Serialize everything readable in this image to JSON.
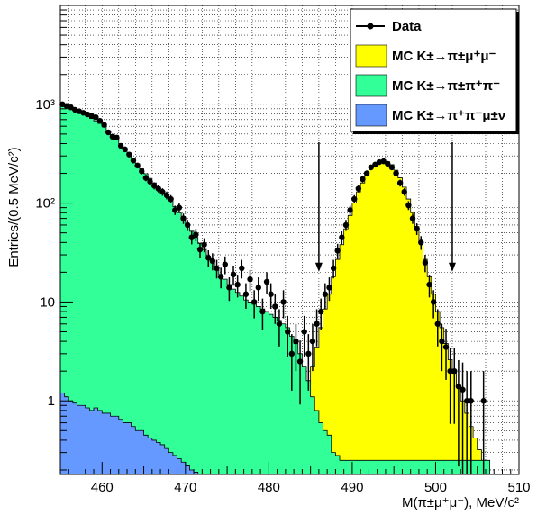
{
  "chart_data": {
    "type": "histogram",
    "title": "",
    "xlabel": "M(π±μ⁺μ⁻), MeV/c²",
    "ylabel": "Entries/(0.5 MeV/c²)",
    "xlim": [
      455,
      510
    ],
    "ylim": [
      0.18,
      10000
    ],
    "yscale": "log",
    "grid": true,
    "legend_position": "top-right",
    "x_ticks": [
      460,
      470,
      480,
      490,
      500,
      510
    ],
    "x_tick_labels": [
      "460",
      "470",
      "480",
      "490",
      "500",
      "510"
    ],
    "y_ticks": [
      1,
      10,
      100,
      1000
    ],
    "y_tick_labels": [
      "1",
      "10",
      "10²",
      "10³"
    ],
    "bin_width": 0.5,
    "series": [
      {
        "name": "Data",
        "kind": "points",
        "color": "#000000",
        "points": [
          [
            455.25,
            1000
          ],
          [
            455.75,
            960
          ],
          [
            456.25,
            930
          ],
          [
            456.75,
            880
          ],
          [
            457.25,
            850
          ],
          [
            457.75,
            820
          ],
          [
            458.25,
            790
          ],
          [
            458.75,
            760
          ],
          [
            459.25,
            740
          ],
          [
            459.75,
            680
          ],
          [
            460.25,
            620
          ],
          [
            460.75,
            520
          ],
          [
            461.25,
            470
          ],
          [
            461.75,
            460
          ],
          [
            462.25,
            380
          ],
          [
            462.75,
            350
          ],
          [
            463.25,
            310
          ],
          [
            463.75,
            270
          ],
          [
            464.25,
            240
          ],
          [
            464.75,
            210
          ],
          [
            465.25,
            180
          ],
          [
            465.75,
            165
          ],
          [
            466.25,
            150
          ],
          [
            466.75,
            140
          ],
          [
            467.25,
            130
          ],
          [
            467.75,
            120
          ],
          [
            468.25,
            110
          ],
          [
            468.75,
            85
          ],
          [
            469.25,
            90
          ],
          [
            469.75,
            70
          ],
          [
            470.25,
            60
          ],
          [
            470.75,
            45
          ],
          [
            471.25,
            48
          ],
          [
            471.75,
            34
          ],
          [
            472.25,
            38
          ],
          [
            472.75,
            28
          ],
          [
            473.25,
            26
          ],
          [
            473.75,
            22
          ],
          [
            474.25,
            18
          ],
          [
            474.75,
            24
          ],
          [
            475.25,
            14
          ],
          [
            475.75,
            19
          ],
          [
            476.25,
            15
          ],
          [
            476.75,
            22
          ],
          [
            477.25,
            12
          ],
          [
            477.75,
            17
          ],
          [
            478.25,
            10
          ],
          [
            478.75,
            14
          ],
          [
            479.25,
            8
          ],
          [
            479.75,
            16
          ],
          [
            480.25,
            12
          ],
          [
            480.75,
            9
          ],
          [
            481.25,
            6
          ],
          [
            481.75,
            10
          ],
          [
            482.25,
            5
          ],
          [
            482.75,
            3
          ],
          [
            483.25,
            4
          ],
          [
            483.75,
            2.5
          ],
          [
            484.25,
            5
          ],
          [
            484.75,
            3
          ],
          [
            485.25,
            4
          ],
          [
            485.75,
            6
          ],
          [
            486.25,
            8
          ],
          [
            486.75,
            12
          ],
          [
            487.25,
            14
          ],
          [
            487.75,
            22
          ],
          [
            488.25,
            33
          ],
          [
            488.75,
            45
          ],
          [
            489.25,
            60
          ],
          [
            489.75,
            85
          ],
          [
            490.25,
            110
          ],
          [
            490.75,
            140
          ],
          [
            491.25,
            175
          ],
          [
            491.75,
            200
          ],
          [
            492.25,
            230
          ],
          [
            492.75,
            245
          ],
          [
            493.25,
            260
          ],
          [
            493.75,
            265
          ],
          [
            494.25,
            250
          ],
          [
            494.75,
            230
          ],
          [
            495.25,
            200
          ],
          [
            495.75,
            160
          ],
          [
            496.25,
            130
          ],
          [
            496.75,
            95
          ],
          [
            497.25,
            70
          ],
          [
            497.75,
            55
          ],
          [
            498.25,
            40
          ],
          [
            498.75,
            25
          ],
          [
            499.25,
            15
          ],
          [
            499.75,
            10
          ],
          [
            500.25,
            6
          ],
          [
            500.75,
            4
          ],
          [
            501.25,
            3.5
          ],
          [
            501.75,
            2
          ],
          [
            502.25,
            2
          ],
          [
            502.75,
            1.4
          ],
          [
            503.25,
            1.3
          ],
          [
            503.75,
            1
          ],
          [
            504.25,
            1
          ],
          [
            505.75,
            1
          ]
        ]
      },
      {
        "name": "MC K±→π±μ⁺μ⁻",
        "kind": "histogram",
        "color": "#ffff00",
        "edges": [
          [
            484.0,
            1
          ],
          [
            484.5,
            1.5
          ],
          [
            485.0,
            2.2
          ],
          [
            485.5,
            3.5
          ],
          [
            486.0,
            5.5
          ],
          [
            486.5,
            8.5
          ],
          [
            487.0,
            12
          ],
          [
            487.5,
            18
          ],
          [
            488.0,
            27
          ],
          [
            488.5,
            38
          ],
          [
            489.0,
            55
          ],
          [
            489.5,
            75
          ],
          [
            490.0,
            100
          ],
          [
            490.5,
            130
          ],
          [
            491.0,
            160
          ],
          [
            491.5,
            195
          ],
          [
            492.0,
            225
          ],
          [
            492.5,
            250
          ],
          [
            493.0,
            265
          ],
          [
            493.5,
            270
          ],
          [
            494.0,
            262
          ],
          [
            494.5,
            245
          ],
          [
            495.0,
            215
          ],
          [
            495.5,
            180
          ],
          [
            496.0,
            145
          ],
          [
            496.5,
            110
          ],
          [
            497.0,
            80
          ],
          [
            497.5,
            58
          ],
          [
            498.0,
            40
          ],
          [
            498.5,
            27
          ],
          [
            499.0,
            18
          ],
          [
            499.5,
            12
          ],
          [
            500.0,
            8
          ],
          [
            500.5,
            5.5
          ],
          [
            501.0,
            3.8
          ],
          [
            501.5,
            2.6
          ],
          [
            502.0,
            1.9
          ],
          [
            502.5,
            1.4
          ],
          [
            503.0,
            1.0
          ],
          [
            503.5,
            0.75
          ],
          [
            504.0,
            0.55
          ],
          [
            504.5,
            0.42
          ],
          [
            505.0,
            0.32
          ],
          [
            505.5,
            0.25
          ],
          [
            506.0,
            0.2
          ]
        ]
      },
      {
        "name": "MC K±→π±π⁺π⁻",
        "kind": "histogram",
        "color": "#33ff99",
        "edges": [
          [
            455.0,
            1000
          ],
          [
            455.5,
            960
          ],
          [
            456.0,
            920
          ],
          [
            456.5,
            880
          ],
          [
            457.0,
            840
          ],
          [
            457.5,
            800
          ],
          [
            458.0,
            760
          ],
          [
            458.5,
            720
          ],
          [
            459.0,
            680
          ],
          [
            459.5,
            640
          ],
          [
            460.0,
            590
          ],
          [
            460.5,
            540
          ],
          [
            461.0,
            490
          ],
          [
            461.5,
            445
          ],
          [
            462.0,
            400
          ],
          [
            462.5,
            360
          ],
          [
            463.0,
            320
          ],
          [
            463.5,
            285
          ],
          [
            464.0,
            250
          ],
          [
            464.5,
            222
          ],
          [
            465.0,
            198
          ],
          [
            465.5,
            178
          ],
          [
            466.0,
            160
          ],
          [
            466.5,
            145
          ],
          [
            467.0,
            130
          ],
          [
            467.5,
            117
          ],
          [
            468.0,
            105
          ],
          [
            468.5,
            92
          ],
          [
            469.0,
            80
          ],
          [
            469.5,
            70
          ],
          [
            470.0,
            60
          ],
          [
            470.5,
            52
          ],
          [
            471.0,
            45
          ],
          [
            471.5,
            39
          ],
          [
            472.0,
            34
          ],
          [
            472.5,
            29
          ],
          [
            473.0,
            25
          ],
          [
            473.5,
            22
          ],
          [
            474.0,
            19
          ],
          [
            474.5,
            17
          ],
          [
            475.0,
            15
          ],
          [
            475.5,
            13.5
          ],
          [
            476.0,
            12.5
          ],
          [
            476.5,
            11.5
          ],
          [
            477.0,
            10.5
          ],
          [
            477.5,
            10
          ],
          [
            478.0,
            9.5
          ],
          [
            478.5,
            9
          ],
          [
            479.0,
            8.5
          ],
          [
            479.5,
            8
          ],
          [
            480.0,
            7.5
          ],
          [
            480.5,
            7
          ],
          [
            481.0,
            6.5
          ],
          [
            481.5,
            6
          ],
          [
            482.0,
            5.5
          ],
          [
            482.5,
            4.5
          ],
          [
            483.0,
            3.8
          ],
          [
            483.5,
            3
          ],
          [
            484.0,
            2.2
          ],
          [
            484.5,
            1.6
          ],
          [
            485.0,
            1.1
          ],
          [
            485.5,
            0.8
          ],
          [
            486.0,
            0.6
          ],
          [
            486.5,
            0.5
          ],
          [
            487.0,
            0.45
          ],
          [
            487.5,
            0.3
          ],
          [
            488.0,
            0.28
          ],
          [
            488.5,
            0.25
          ],
          [
            489.0,
            0.25
          ],
          [
            489.5,
            0.25
          ],
          [
            490.0,
            0.25
          ],
          [
            490.5,
            0.25
          ],
          [
            491.0,
            0.25
          ],
          [
            491.5,
            0.25
          ],
          [
            492.0,
            0.25
          ],
          [
            492.5,
            0.25
          ],
          [
            493.0,
            0.25
          ],
          [
            493.5,
            0.25
          ],
          [
            494.0,
            0.25
          ],
          [
            494.5,
            0.25
          ],
          [
            495.0,
            0.25
          ],
          [
            495.5,
            0.25
          ],
          [
            496.0,
            0.25
          ],
          [
            496.5,
            0.25
          ],
          [
            497.0,
            0.25
          ],
          [
            497.5,
            0.25
          ],
          [
            498.0,
            0.25
          ],
          [
            498.5,
            0.25
          ],
          [
            499.0,
            0.25
          ],
          [
            499.5,
            0.25
          ],
          [
            500.0,
            0.25
          ],
          [
            500.5,
            0.25
          ],
          [
            501.0,
            0.25
          ],
          [
            501.5,
            0.25
          ],
          [
            502.0,
            0.25
          ],
          [
            502.5,
            0.25
          ],
          [
            503.0,
            0.25
          ],
          [
            503.5,
            0.25
          ],
          [
            504.0,
            0.25
          ],
          [
            504.5,
            0.25
          ],
          [
            505.0,
            0.25
          ],
          [
            505.5,
            0.25
          ],
          [
            506.0,
            0.25
          ]
        ]
      },
      {
        "name": "MC K±→π⁺π⁻μ±ν",
        "kind": "histogram",
        "color": "#6699ff",
        "edges": [
          [
            455.0,
            1.2
          ],
          [
            455.5,
            1.1
          ],
          [
            456.0,
            1.0
          ],
          [
            456.5,
            0.95
          ],
          [
            457.0,
            0.9
          ],
          [
            457.5,
            0.9
          ],
          [
            458.0,
            0.85
          ],
          [
            458.5,
            0.8
          ],
          [
            459.0,
            0.85
          ],
          [
            459.5,
            0.8
          ],
          [
            460.0,
            0.75
          ],
          [
            460.5,
            0.75
          ],
          [
            461.0,
            0.7
          ],
          [
            461.5,
            0.7
          ],
          [
            462.0,
            0.65
          ],
          [
            462.5,
            0.6
          ],
          [
            463.0,
            0.6
          ],
          [
            463.5,
            0.55
          ],
          [
            464.0,
            0.5
          ],
          [
            464.5,
            0.5
          ],
          [
            465.0,
            0.45
          ],
          [
            465.5,
            0.42
          ],
          [
            466.0,
            0.4
          ],
          [
            466.5,
            0.38
          ],
          [
            467.0,
            0.36
          ],
          [
            467.5,
            0.33
          ],
          [
            468.0,
            0.3
          ],
          [
            468.5,
            0.28
          ],
          [
            469.0,
            0.26
          ],
          [
            469.5,
            0.24
          ],
          [
            470.0,
            0.22
          ],
          [
            470.5,
            0.2
          ],
          [
            471.0,
            0.19
          ]
        ]
      }
    ],
    "annotations": [
      {
        "type": "arrow",
        "x": 486,
        "from_y": 60,
        "to_y": 25,
        "label": ""
      },
      {
        "type": "arrow",
        "x": 502,
        "from_y": 60,
        "to_y": 25,
        "label": ""
      }
    ]
  },
  "legend": {
    "items": [
      {
        "label_prefix": "Data",
        "label_suffix": "",
        "color": "#000000",
        "marker": "point"
      },
      {
        "label_prefix": "MC K",
        "label_suffix": "±→π±μ⁺μ⁻",
        "color": "#ffff00",
        "marker": "box"
      },
      {
        "label_prefix": "MC K",
        "label_suffix": "±→π±π⁺π⁻",
        "color": "#33ff99",
        "marker": "box"
      },
      {
        "label_prefix": "MC K",
        "label_suffix": "±→π⁺π⁻μ±ν",
        "color": "#6699ff",
        "marker": "box"
      }
    ]
  }
}
